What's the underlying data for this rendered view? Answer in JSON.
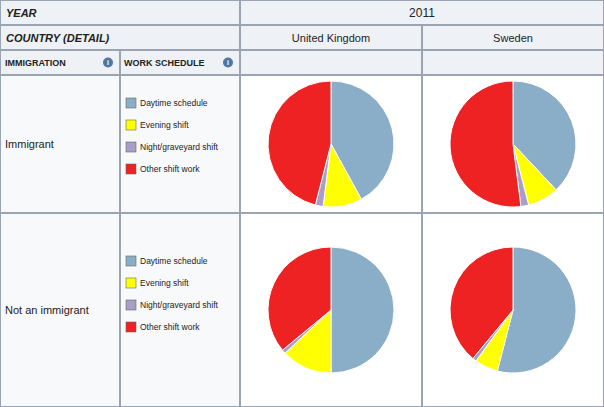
{
  "chart_data": {
    "type": "pie",
    "title": "2011",
    "annotations": [
      "YEAR",
      "COUNTRY (DETAIL)",
      "IMMIGRATION",
      "WORK SCHEDULE",
      "i"
    ],
    "columns": [
      "United Kingdom",
      "Sweden"
    ],
    "rows": [
      "Immigrant",
      "Not an immigrant"
    ],
    "categories": [
      "Daytime schedule",
      "Evening shift",
      "Night/graveyard shift",
      "Other shift work"
    ],
    "colors": [
      "#8BAEC8",
      "#FFFF00",
      "#A89FC8",
      "#EE2222"
    ],
    "values": [
      [
        [
          42,
          10,
          2,
          46
        ],
        [
          38,
          8,
          2,
          52
        ]
      ],
      [
        [
          50,
          13,
          1,
          36
        ],
        [
          54,
          6,
          1,
          39
        ]
      ]
    ],
    "legend": "left"
  }
}
